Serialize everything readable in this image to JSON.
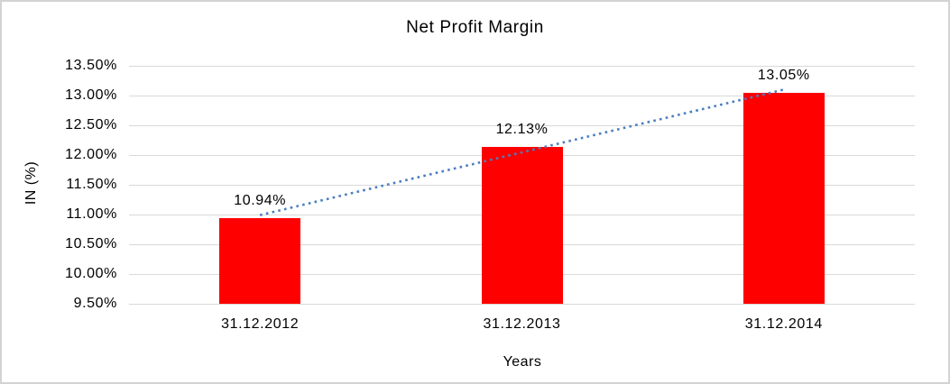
{
  "chart": {
    "title": "Net Profit Margin",
    "y_axis_title": "IN (%)",
    "x_axis_title": "Years"
  },
  "chart_data": {
    "type": "bar",
    "title": "Net Profit Margin",
    "xlabel": "Years",
    "ylabel": "IN (%)",
    "categories": [
      "31.12.2012",
      "31.12.2013",
      "31.12.2014"
    ],
    "values": [
      10.94,
      12.13,
      13.05
    ],
    "data_labels": [
      "10.94%",
      "12.13%",
      "13.05%"
    ],
    "ylim": [
      9.5,
      13.5
    ],
    "ytick_step": 0.5,
    "ytick_labels": [
      "9.50%",
      "10.00%",
      "10.50%",
      "11.00%",
      "11.50%",
      "12.00%",
      "12.50%",
      "13.00%",
      "13.50%"
    ],
    "grid": true,
    "legend": "none",
    "colors": {
      "bar": "#ff0000",
      "gridline": "#d9d9d9",
      "frame_border": "#d3d3d3",
      "text": "#000000",
      "trendline": "#4a7ebf"
    },
    "trendline": {
      "type": "linear",
      "style": "dotted",
      "color": "#4a7ebf",
      "start_value": 10.99,
      "end_value": 13.1
    }
  }
}
